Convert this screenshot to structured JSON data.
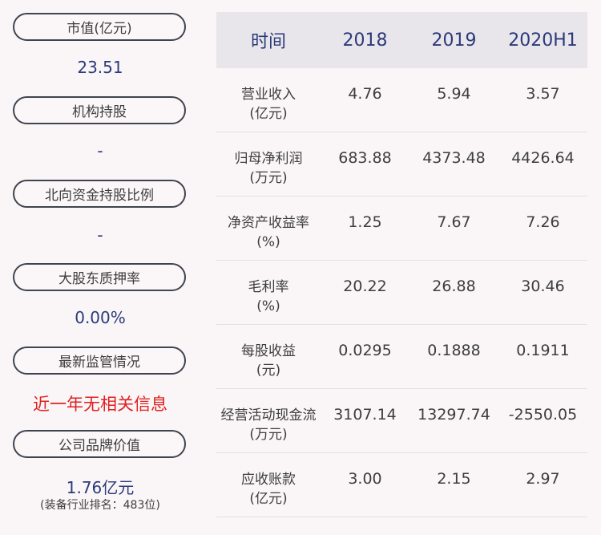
{
  "left": {
    "items": [
      {
        "label": "市值(亿元)",
        "value": "23.51"
      },
      {
        "label": "机构持股",
        "value": "-"
      },
      {
        "label": "北向资金持股比例",
        "value": "-"
      },
      {
        "label": "大股东质押率",
        "value": "0.00%"
      },
      {
        "label": "最新监管情况",
        "value": "近一年无相关信息"
      },
      {
        "label": "公司品牌价值",
        "value": "1.76亿元",
        "note": "(装备行业排名：483位)"
      }
    ]
  },
  "table": {
    "headers": [
      "时间",
      "2018",
      "2019",
      "2020H1"
    ],
    "rows": [
      {
        "name": "营业收入",
        "unit": "(亿元)",
        "values": [
          "4.76",
          "5.94",
          "3.57"
        ]
      },
      {
        "name": "归母净利润",
        "unit": "(万元)",
        "values": [
          "683.88",
          "4373.48",
          "4426.64"
        ]
      },
      {
        "name": "净资产收益率",
        "unit": "(%)",
        "values": [
          "1.25",
          "7.67",
          "7.26"
        ]
      },
      {
        "name": "毛利率",
        "unit": "(%)",
        "values": [
          "20.22",
          "26.88",
          "30.46"
        ]
      },
      {
        "name": "每股收益",
        "unit": "(元)",
        "values": [
          "0.0295",
          "0.1888",
          "0.1911"
        ]
      },
      {
        "name": "经营活动现金流",
        "unit": "(万元)",
        "values": [
          "3107.14",
          "13297.74",
          "-2550.05"
        ]
      },
      {
        "name": "应收账款",
        "unit": "(亿元)",
        "values": [
          "3.00",
          "2.15",
          "2.97"
        ]
      }
    ]
  }
}
